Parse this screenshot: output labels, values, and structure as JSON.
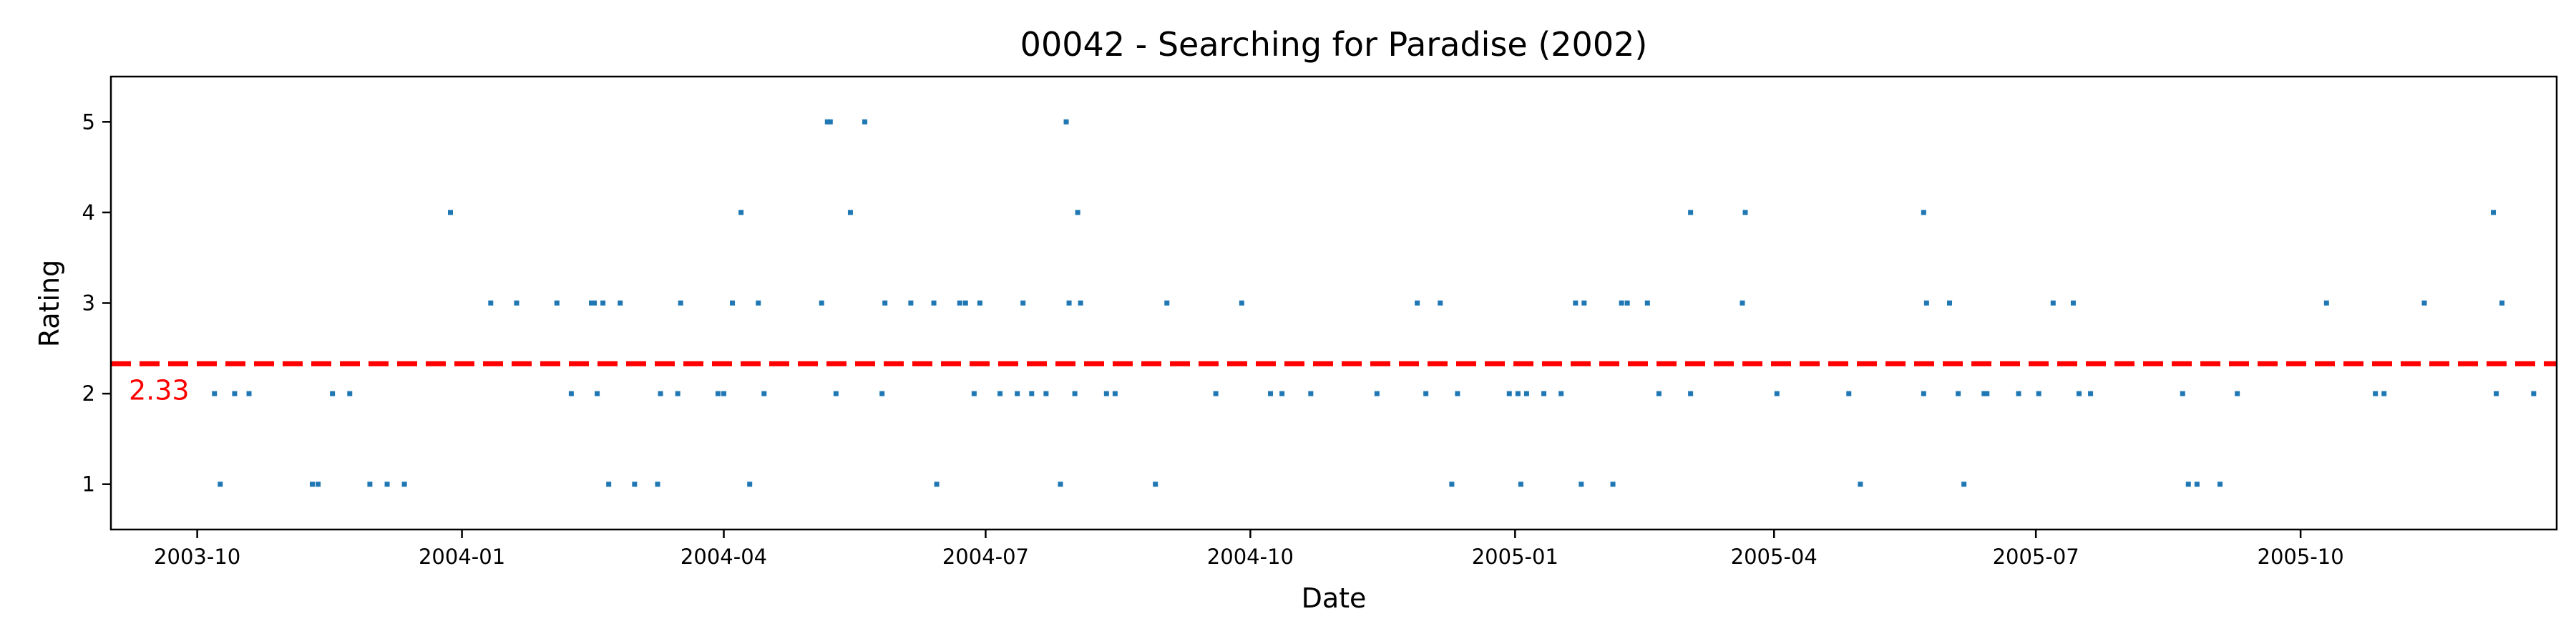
{
  "chart_data": {
    "type": "scatter",
    "title": "00042 - Searching for Paradise (2002)",
    "xlabel": "Date",
    "ylabel": "Rating",
    "xlim": [
      "2003-09-01",
      "2005-12-29"
    ],
    "ylim": [
      0.5,
      5.5
    ],
    "xticks": [
      "2003-10",
      "2004-01",
      "2004-04",
      "2004-07",
      "2004-10",
      "2005-01",
      "2005-04",
      "2005-07",
      "2005-10"
    ],
    "yticks": [
      1,
      2,
      3,
      4,
      5
    ],
    "grid": false,
    "legend": "none",
    "point_color": "#1f77b4",
    "mean": {
      "value": 2.33,
      "label": "2.33",
      "color": "#ff0000",
      "style": "dashed"
    },
    "points": [
      {
        "x": "2003-10-07",
        "y": 2
      },
      {
        "x": "2003-10-09",
        "y": 1
      },
      {
        "x": "2003-10-14",
        "y": 2
      },
      {
        "x": "2003-10-19",
        "y": 2
      },
      {
        "x": "2003-11-10",
        "y": 1
      },
      {
        "x": "2003-11-12",
        "y": 1
      },
      {
        "x": "2003-11-17",
        "y": 2
      },
      {
        "x": "2003-11-23",
        "y": 2
      },
      {
        "x": "2003-11-30",
        "y": 1
      },
      {
        "x": "2003-12-06",
        "y": 1
      },
      {
        "x": "2003-12-12",
        "y": 1
      },
      {
        "x": "2003-12-28",
        "y": 4
      },
      {
        "x": "2004-01-11",
        "y": 3
      },
      {
        "x": "2004-01-20",
        "y": 3
      },
      {
        "x": "2004-02-03",
        "y": 3
      },
      {
        "x": "2004-02-08",
        "y": 2
      },
      {
        "x": "2004-02-15",
        "y": 3
      },
      {
        "x": "2004-02-16",
        "y": 3
      },
      {
        "x": "2004-02-17",
        "y": 2
      },
      {
        "x": "2004-02-19",
        "y": 3
      },
      {
        "x": "2004-02-21",
        "y": 1
      },
      {
        "x": "2004-02-25",
        "y": 3
      },
      {
        "x": "2004-03-01",
        "y": 1
      },
      {
        "x": "2004-03-09",
        "y": 1
      },
      {
        "x": "2004-03-10",
        "y": 2
      },
      {
        "x": "2004-03-16",
        "y": 2
      },
      {
        "x": "2004-03-17",
        "y": 3
      },
      {
        "x": "2004-03-30",
        "y": 2
      },
      {
        "x": "2004-04-01",
        "y": 2
      },
      {
        "x": "2004-04-04",
        "y": 3
      },
      {
        "x": "2004-04-07",
        "y": 4
      },
      {
        "x": "2004-04-10",
        "y": 1
      },
      {
        "x": "2004-04-13",
        "y": 3
      },
      {
        "x": "2004-04-15",
        "y": 2
      },
      {
        "x": "2004-05-05",
        "y": 3
      },
      {
        "x": "2004-05-07",
        "y": 5
      },
      {
        "x": "2004-05-08",
        "y": 5
      },
      {
        "x": "2004-05-10",
        "y": 2
      },
      {
        "x": "2004-05-15",
        "y": 4
      },
      {
        "x": "2004-05-20",
        "y": 5
      },
      {
        "x": "2004-05-26",
        "y": 2
      },
      {
        "x": "2004-05-27",
        "y": 3
      },
      {
        "x": "2004-06-05",
        "y": 3
      },
      {
        "x": "2004-06-13",
        "y": 3
      },
      {
        "x": "2004-06-14",
        "y": 1
      },
      {
        "x": "2004-06-22",
        "y": 3
      },
      {
        "x": "2004-06-24",
        "y": 3
      },
      {
        "x": "2004-06-27",
        "y": 2
      },
      {
        "x": "2004-06-29",
        "y": 3
      },
      {
        "x": "2004-07-06",
        "y": 2
      },
      {
        "x": "2004-07-12",
        "y": 2
      },
      {
        "x": "2004-07-14",
        "y": 3
      },
      {
        "x": "2004-07-17",
        "y": 2
      },
      {
        "x": "2004-07-22",
        "y": 2
      },
      {
        "x": "2004-07-27",
        "y": 1
      },
      {
        "x": "2004-07-29",
        "y": 5
      },
      {
        "x": "2004-07-30",
        "y": 3
      },
      {
        "x": "2004-08-01",
        "y": 2
      },
      {
        "x": "2004-08-02",
        "y": 4
      },
      {
        "x": "2004-08-03",
        "y": 3
      },
      {
        "x": "2004-08-12",
        "y": 2
      },
      {
        "x": "2004-08-15",
        "y": 2
      },
      {
        "x": "2004-08-29",
        "y": 1
      },
      {
        "x": "2004-09-02",
        "y": 3
      },
      {
        "x": "2004-09-19",
        "y": 2
      },
      {
        "x": "2004-09-28",
        "y": 3
      },
      {
        "x": "2004-10-08",
        "y": 2
      },
      {
        "x": "2004-10-12",
        "y": 2
      },
      {
        "x": "2004-10-22",
        "y": 2
      },
      {
        "x": "2004-11-14",
        "y": 2
      },
      {
        "x": "2004-11-28",
        "y": 3
      },
      {
        "x": "2004-12-01",
        "y": 2
      },
      {
        "x": "2004-12-06",
        "y": 3
      },
      {
        "x": "2004-12-10",
        "y": 1
      },
      {
        "x": "2004-12-12",
        "y": 2
      },
      {
        "x": "2004-12-30",
        "y": 2
      },
      {
        "x": "2005-01-02",
        "y": 2
      },
      {
        "x": "2005-01-03",
        "y": 1
      },
      {
        "x": "2005-01-05",
        "y": 2
      },
      {
        "x": "2005-01-11",
        "y": 2
      },
      {
        "x": "2005-01-17",
        "y": 2
      },
      {
        "x": "2005-01-22",
        "y": 3
      },
      {
        "x": "2005-01-24",
        "y": 1
      },
      {
        "x": "2005-01-25",
        "y": 3
      },
      {
        "x": "2005-02-04",
        "y": 1
      },
      {
        "x": "2005-02-07",
        "y": 3
      },
      {
        "x": "2005-02-09",
        "y": 3
      },
      {
        "x": "2005-02-16",
        "y": 3
      },
      {
        "x": "2005-02-20",
        "y": 2
      },
      {
        "x": "2005-03-03",
        "y": 2
      },
      {
        "x": "2005-03-03",
        "y": 4
      },
      {
        "x": "2005-03-21",
        "y": 3
      },
      {
        "x": "2005-03-22",
        "y": 4
      },
      {
        "x": "2005-04-02",
        "y": 2
      },
      {
        "x": "2005-04-27",
        "y": 2
      },
      {
        "x": "2005-05-01",
        "y": 1
      },
      {
        "x": "2005-05-23",
        "y": 2
      },
      {
        "x": "2005-05-23",
        "y": 4
      },
      {
        "x": "2005-05-24",
        "y": 3
      },
      {
        "x": "2005-06-01",
        "y": 3
      },
      {
        "x": "2005-06-04",
        "y": 2
      },
      {
        "x": "2005-06-06",
        "y": 1
      },
      {
        "x": "2005-06-13",
        "y": 2
      },
      {
        "x": "2005-06-14",
        "y": 2
      },
      {
        "x": "2005-06-25",
        "y": 2
      },
      {
        "x": "2005-07-02",
        "y": 2
      },
      {
        "x": "2005-07-07",
        "y": 3
      },
      {
        "x": "2005-07-14",
        "y": 3
      },
      {
        "x": "2005-07-16",
        "y": 2
      },
      {
        "x": "2005-07-20",
        "y": 2
      },
      {
        "x": "2005-08-21",
        "y": 2
      },
      {
        "x": "2005-08-23",
        "y": 1
      },
      {
        "x": "2005-08-26",
        "y": 1
      },
      {
        "x": "2005-09-03",
        "y": 1
      },
      {
        "x": "2005-09-09",
        "y": 2
      },
      {
        "x": "2005-10-10",
        "y": 3
      },
      {
        "x": "2005-10-27",
        "y": 2
      },
      {
        "x": "2005-10-30",
        "y": 2
      },
      {
        "x": "2005-11-13",
        "y": 3
      },
      {
        "x": "2005-12-07",
        "y": 4
      },
      {
        "x": "2005-12-08",
        "y": 2
      },
      {
        "x": "2005-12-10",
        "y": 3
      },
      {
        "x": "2005-12-21",
        "y": 2
      }
    ]
  }
}
